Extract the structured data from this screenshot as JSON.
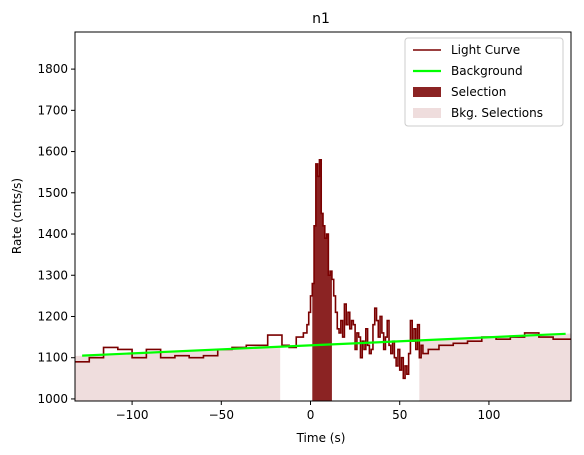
{
  "chart_data": {
    "type": "line",
    "title": "n1",
    "xlabel": "Time (s)",
    "ylabel": "Rate (cnts/s)",
    "xlim": [
      -132,
      146
    ],
    "ylim": [
      995,
      1890
    ],
    "xticks": [
      -100,
      -50,
      0,
      50,
      100
    ],
    "xtick_labels": [
      "−100",
      "−50",
      "0",
      "50",
      "100"
    ],
    "yticks": [
      1000,
      1100,
      1200,
      1300,
      1400,
      1500,
      1600,
      1700,
      1800
    ],
    "ytick_labels": [
      "1000",
      "1100",
      "1200",
      "1300",
      "1400",
      "1500",
      "1600",
      "1700",
      "1800"
    ],
    "grid": false,
    "legend_position": "top-right",
    "legend": [
      {
        "label": "Light Curve",
        "kind": "line",
        "color": "#7a0000"
      },
      {
        "label": "Background",
        "kind": "line",
        "color": "#00ff00"
      },
      {
        "label": "Selection",
        "kind": "patch",
        "color": "#8b2323"
      },
      {
        "label": "Bkg. Selections",
        "kind": "patch",
        "color": "#efdddd"
      }
    ],
    "colors": {
      "light_curve": "#7a0000",
      "background": "#00ff00",
      "selection": "#8b2323",
      "bkg_selection": "#efdddd"
    },
    "background_line": {
      "x": [
        -128,
        143
      ],
      "y": [
        1105,
        1158
      ]
    },
    "bkg_selections": [
      [
        -132,
        -17
      ],
      [
        61,
        146
      ]
    ],
    "selection": [
      1,
      12
    ],
    "light_curve": {
      "x": [
        -132,
        -124,
        -116,
        -108,
        -100,
        -92,
        -84,
        -76,
        -68,
        -60,
        -52,
        -44,
        -36,
        -28,
        -24,
        -16,
        -12,
        -8,
        -4,
        -2,
        -1,
        0,
        1,
        2,
        3,
        4,
        5,
        6,
        7,
        8,
        9,
        10,
        11,
        12,
        13,
        14,
        15,
        16,
        17,
        18,
        19,
        20,
        21,
        22,
        23,
        24,
        25,
        26,
        27,
        28,
        29,
        30,
        31,
        32,
        33,
        34,
        35,
        36,
        37,
        38,
        39,
        40,
        41,
        42,
        43,
        44,
        45,
        46,
        47,
        48,
        49,
        50,
        51,
        52,
        53,
        54,
        55,
        56,
        57,
        58,
        59,
        60,
        61,
        62,
        63,
        66,
        72,
        80,
        88,
        96,
        104,
        112,
        120,
        128,
        136
      ],
      "y": [
        1090,
        1100,
        1125,
        1120,
        1100,
        1120,
        1100,
        1105,
        1100,
        1105,
        1120,
        1125,
        1130,
        1130,
        1155,
        1130,
        1125,
        1150,
        1160,
        1180,
        1210,
        1250,
        1280,
        1420,
        1570,
        1540,
        1580,
        1450,
        1420,
        1390,
        1400,
        1300,
        1310,
        1290,
        1250,
        1210,
        1170,
        1160,
        1190,
        1150,
        1230,
        1180,
        1210,
        1170,
        1190,
        1180,
        1120,
        1160,
        1150,
        1100,
        1140,
        1120,
        1170,
        1130,
        1110,
        1120,
        1180,
        1220,
        1190,
        1150,
        1200,
        1160,
        1120,
        1150,
        1190,
        1130,
        1110,
        1140,
        1100,
        1080,
        1120,
        1070,
        1100,
        1050,
        1080,
        1060,
        1110,
        1190,
        1140,
        1170,
        1120,
        1180,
        1100,
        1130,
        1110,
        1120,
        1130,
        1135,
        1140,
        1150,
        1145,
        1150,
        1160,
        1150,
        1145
      ]
    }
  }
}
